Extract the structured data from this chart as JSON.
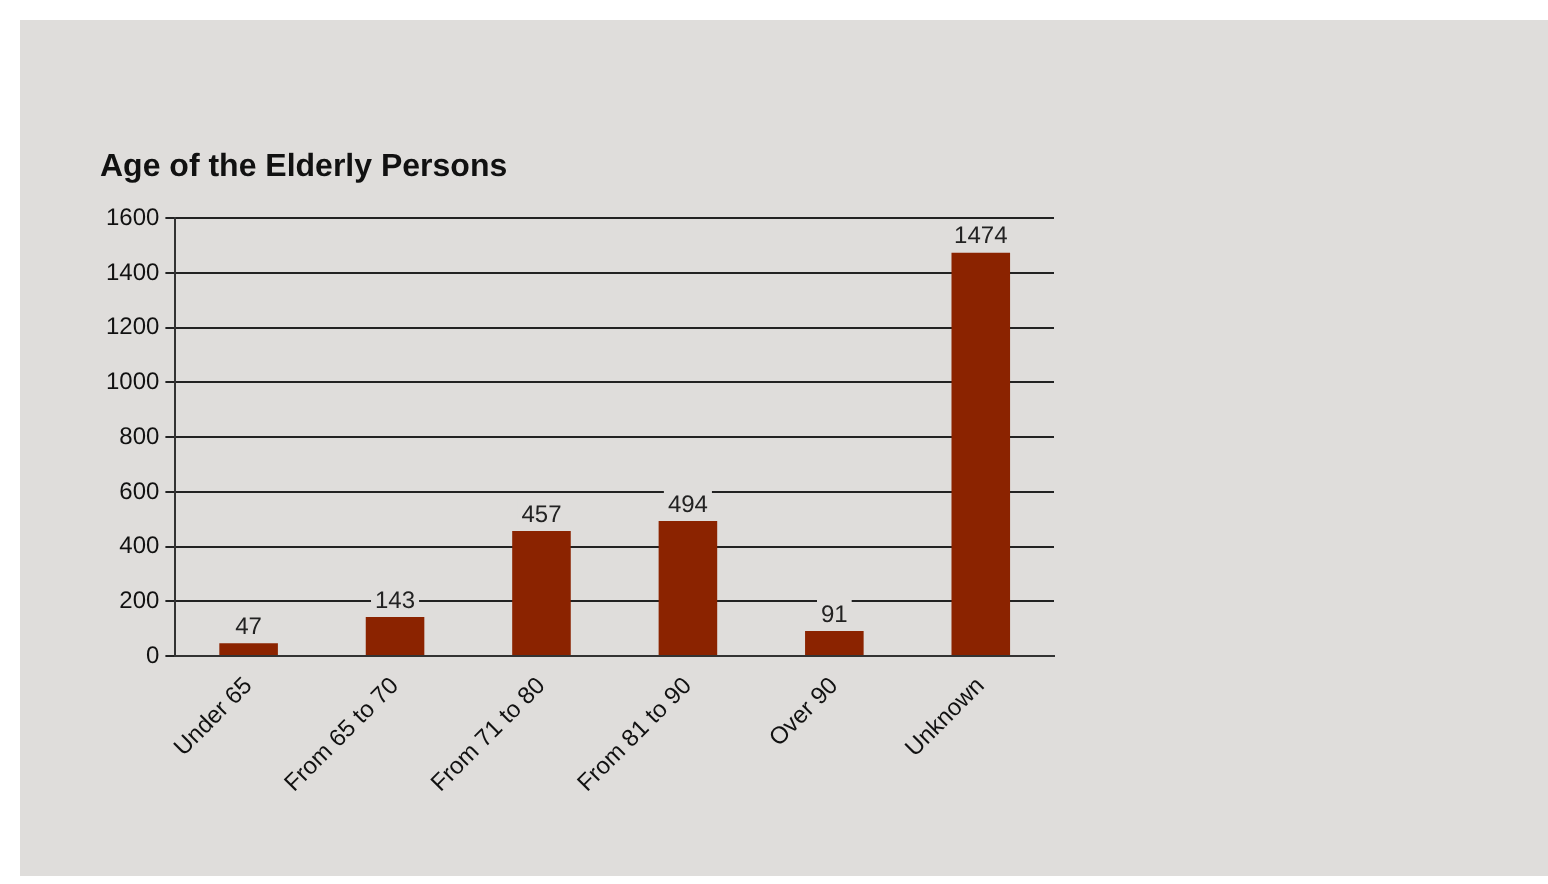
{
  "chart_data": {
    "type": "bar",
    "title": "Age of the Elderly Persons",
    "categories": [
      "Under 65",
      "From 65 to 70",
      "From 71 to 80",
      "From 81 to 90",
      "Over 90",
      "Unknown"
    ],
    "values": [
      47,
      143,
      457,
      494,
      91,
      1474
    ],
    "color": "#8b2300",
    "ylim": [
      0,
      1600
    ],
    "yticks": [
      0,
      200,
      400,
      600,
      800,
      1000,
      1200,
      1400,
      1600
    ],
    "grid": "y",
    "data_labels": true,
    "legend": false
  }
}
